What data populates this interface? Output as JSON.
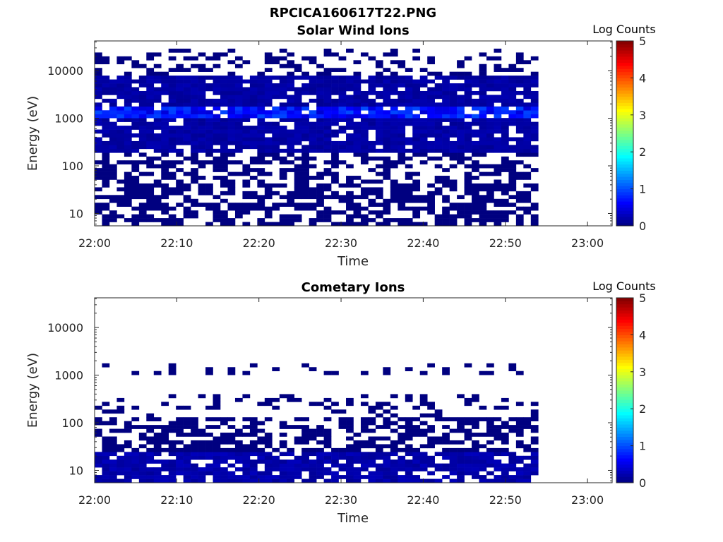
{
  "figure": {
    "title": "RPCICA160617T22.PNG"
  },
  "colorbar": {
    "title": "Log Counts",
    "range": [
      0,
      5
    ],
    "ticks": [
      "0",
      "1",
      "2",
      "3",
      "4",
      "5"
    ],
    "colormap": "jet"
  },
  "chart_data": [
    {
      "type": "heatmap",
      "title": "Solar Wind Ions",
      "xlabel": "Time",
      "ylabel": "Energy (eV)",
      "y_scale": "log",
      "ylim": [
        5.5,
        42000
      ],
      "x_ticks": [
        "22:00",
        "22:10",
        "22:20",
        "22:30",
        "22:40",
        "22:50",
        "23:00"
      ],
      "y_ticks": [
        "10",
        "100",
        "1000",
        "10000"
      ],
      "x_range": [
        "22:00",
        "23:03"
      ],
      "data_time_range": [
        "22:00",
        "22:54"
      ],
      "value_range": [
        0,
        1.2
      ],
      "bands": [
        {
          "energy_range_eV": [
            6,
            40
          ],
          "coverage": 0.62,
          "level": 0
        },
        {
          "energy_range_eV": [
            40,
            200
          ],
          "coverage": 0.45,
          "level": 0
        },
        {
          "energy_range_eV": [
            200,
            8000
          ],
          "coverage": 0.88,
          "level": 0.25
        },
        {
          "energy_range_eV": [
            1100,
            1700
          ],
          "coverage": 0.35,
          "level": 1.0
        },
        {
          "energy_range_eV": [
            8000,
            30000
          ],
          "coverage": 0.28,
          "level": 0
        }
      ]
    },
    {
      "type": "heatmap",
      "title": "Cometary Ions",
      "xlabel": "Time",
      "ylabel": "Energy (eV)",
      "y_scale": "log",
      "ylim": [
        5.5,
        42000
      ],
      "x_ticks": [
        "22:00",
        "22:10",
        "22:20",
        "22:30",
        "22:40",
        "22:50",
        "23:00"
      ],
      "y_ticks": [
        "10",
        "100",
        "1000",
        "10000"
      ],
      "x_range": [
        "22:00",
        "23:03"
      ],
      "data_time_range": [
        "22:00",
        "22:54"
      ],
      "value_range": [
        0,
        1.3
      ],
      "bands": [
        {
          "energy_range_eV": [
            6,
            25
          ],
          "coverage": 0.85,
          "level": 0.3
        },
        {
          "energy_range_eV": [
            25,
            120
          ],
          "coverage": 0.55,
          "level": 0
        },
        {
          "energy_range_eV": [
            120,
            400
          ],
          "coverage": 0.2,
          "level": 0
        },
        {
          "energy_range_eV": [
            1000,
            1700
          ],
          "coverage": 0.18,
          "level": 0
        }
      ]
    }
  ]
}
